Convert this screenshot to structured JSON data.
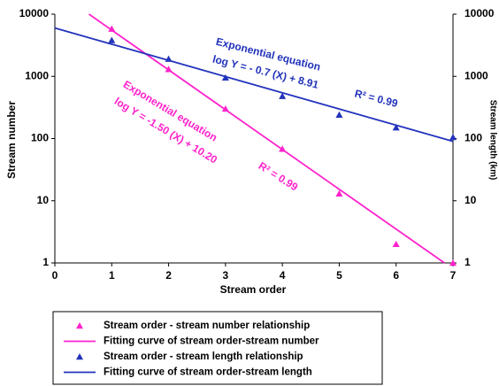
{
  "chart_data": {
    "type": "line",
    "log_scale": true,
    "x_label": "Stream order",
    "y_label": "Stream number",
    "y2_label": "Stream length (km)",
    "xlim": [
      0,
      7
    ],
    "xticks": [
      0,
      1,
      2,
      3,
      4,
      5,
      6,
      7
    ],
    "ylim": [
      1,
      10000
    ],
    "yticks": [
      1,
      10,
      100,
      1000,
      10000
    ],
    "y2lim": [
      1,
      10000
    ],
    "y2ticks": [
      1,
      10,
      100,
      1000,
      10000
    ],
    "legend": "bottom-left",
    "series": [
      {
        "name": "Stream order - stream number relationship",
        "color": "#ff22cc",
        "marker": "triangle",
        "x": [
          1,
          2,
          3,
          4,
          5,
          6,
          7
        ],
        "values": [
          5800,
          1300,
          300,
          68,
          13,
          2,
          1
        ]
      },
      {
        "name": "Fitting curve of stream order-stream number",
        "color": "#ff22cc",
        "marker": "line",
        "x": [
          0.6,
          6.85
        ],
        "values": [
          10000,
          1
        ]
      },
      {
        "name": "Stream order - stream length relationship",
        "color": "#2233bb",
        "marker": "triangle",
        "axis": "y2",
        "x": [
          1,
          2,
          3,
          4,
          5,
          6,
          7
        ],
        "values": [
          3800,
          1900,
          950,
          480,
          240,
          150,
          105
        ]
      },
      {
        "name": "Fitting curve of stream order-stream length",
        "color": "#2233bb",
        "marker": "line",
        "axis": "y2",
        "x": [
          0,
          7
        ],
        "values": [
          6000,
          90
        ]
      }
    ],
    "annotations": [
      {
        "text": "Exponential equation",
        "color": "#2233bb"
      },
      {
        "text": "log Y = - 0.7 (X) + 8.91",
        "color": "#2233bb"
      },
      {
        "text": "R² = 0.99",
        "color": "#2233bb"
      },
      {
        "text": "Exponential equation",
        "color": "#ff22cc"
      },
      {
        "text": "log Y = -1.50 (X) + 10.20",
        "color": "#ff22cc"
      },
      {
        "text": "R² = 0.99",
        "color": "#ff22cc"
      }
    ]
  }
}
